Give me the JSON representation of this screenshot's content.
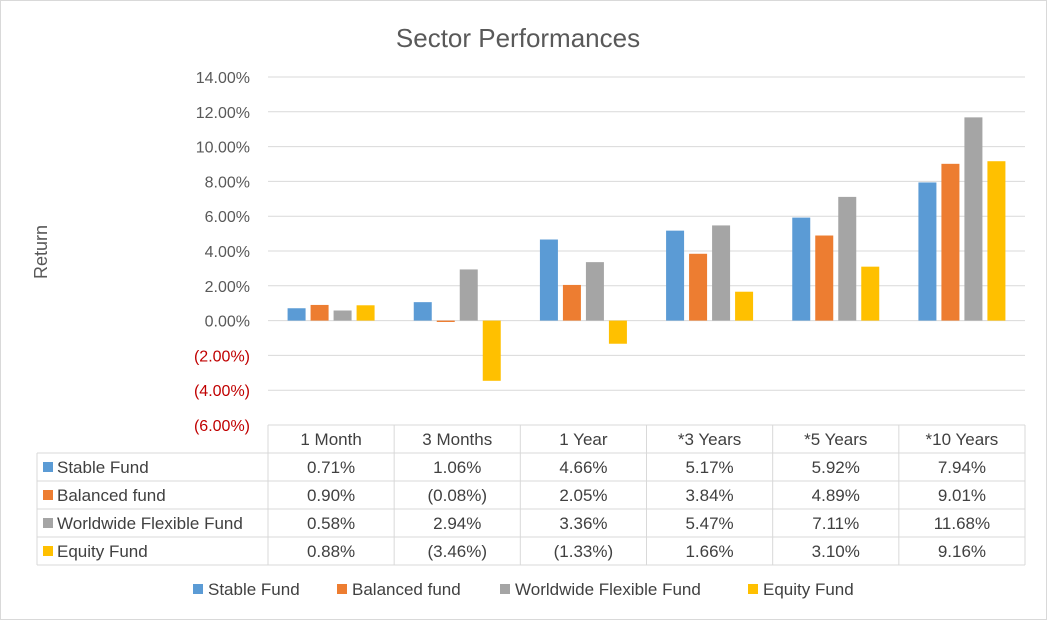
{
  "chart_data": {
    "type": "bar",
    "title": "Sector Performances",
    "xlabel": "",
    "ylabel": "Return",
    "ylim": [
      -0.06,
      0.14
    ],
    "y_ticks": [
      {
        "value": 0.14,
        "label": "14.00%"
      },
      {
        "value": 0.12,
        "label": "12.00%"
      },
      {
        "value": 0.1,
        "label": "10.00%"
      },
      {
        "value": 0.08,
        "label": "8.00%"
      },
      {
        "value": 0.06,
        "label": "6.00%"
      },
      {
        "value": 0.04,
        "label": "4.00%"
      },
      {
        "value": 0.02,
        "label": "2.00%"
      },
      {
        "value": 0.0,
        "label": "0.00%"
      },
      {
        "value": -0.02,
        "label": "(2.00%)"
      },
      {
        "value": -0.04,
        "label": "(4.00%)"
      },
      {
        "value": -0.06,
        "label": "(6.00%)"
      }
    ],
    "categories": [
      "1 Month",
      "3 Months",
      "1 Year",
      "*3 Years",
      "*5 Years",
      "*10 Years"
    ],
    "series": [
      {
        "name": "Stable Fund",
        "color": "#5b9bd5",
        "values": [
          0.0071,
          0.0106,
          0.0466,
          0.0517,
          0.0592,
          0.0794
        ],
        "labels": [
          "0.71%",
          "1.06%",
          "4.66%",
          "5.17%",
          "5.92%",
          "7.94%"
        ]
      },
      {
        "name": "Balanced fund",
        "color": "#ed7d31",
        "values": [
          0.009,
          -0.0008,
          0.0205,
          0.0384,
          0.0489,
          0.0901
        ],
        "labels": [
          "0.90%",
          "(0.08%)",
          "2.05%",
          "3.84%",
          "4.89%",
          "9.01%"
        ]
      },
      {
        "name": "Worldwide Flexible Fund",
        "color": "#a5a5a5",
        "values": [
          0.0058,
          0.0294,
          0.0336,
          0.0547,
          0.0711,
          0.1168
        ],
        "labels": [
          "0.58%",
          "2.94%",
          "3.36%",
          "5.47%",
          "7.11%",
          "11.68%"
        ]
      },
      {
        "name": "Equity Fund",
        "color": "#ffc000",
        "values": [
          0.0088,
          -0.0346,
          -0.0133,
          0.0166,
          0.031,
          0.0916
        ],
        "labels": [
          "0.88%",
          "(3.46%)",
          "(1.33%)",
          "1.66%",
          "3.10%",
          "9.16%"
        ]
      }
    ],
    "data_table": true,
    "legend": "bottom",
    "grid": true,
    "negative_tick_color": "#c00000"
  }
}
